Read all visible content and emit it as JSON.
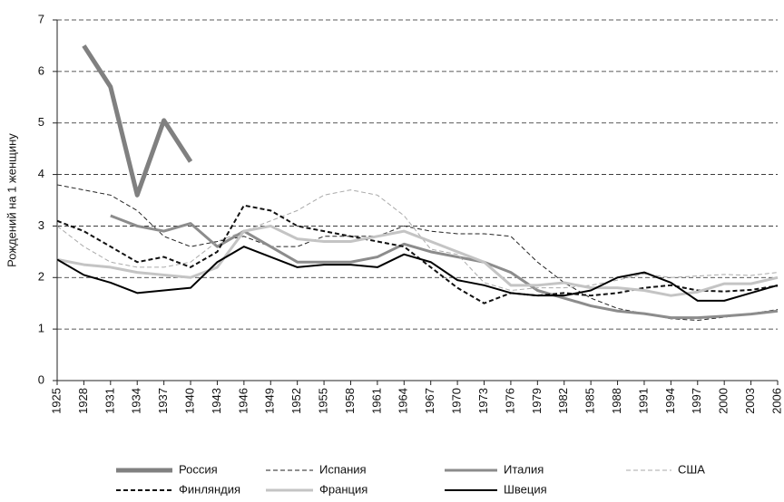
{
  "chart_data": {
    "type": "line",
    "y_label": "Рождений на 1 женщину",
    "x": [
      1925,
      1928,
      1931,
      1934,
      1937,
      1940,
      1943,
      1946,
      1949,
      1952,
      1955,
      1958,
      1961,
      1964,
      1967,
      1970,
      1973,
      1976,
      1979,
      1982,
      1985,
      1988,
      1991,
      1994,
      1997,
      2000,
      2003,
      2006
    ],
    "xlim": [
      1925,
      2006
    ],
    "xticks": [
      1925,
      1928,
      1931,
      1934,
      1937,
      1940,
      1943,
      1946,
      1949,
      1952,
      1955,
      1958,
      1961,
      1964,
      1967,
      1970,
      1973,
      1976,
      1979,
      1982,
      1985,
      1988,
      1991,
      1994,
      1997,
      2000,
      2003,
      2006
    ],
    "ylim": [
      0,
      7
    ],
    "yticks": [
      0,
      1,
      2,
      3,
      4,
      5,
      6,
      7
    ],
    "grid": true,
    "series": [
      {
        "name": "Россия",
        "color": "#808080",
        "line_style": "solid",
        "values": [
          null,
          6.5,
          5.7,
          3.6,
          5.05,
          4.25,
          null,
          null,
          null,
          null,
          null,
          null,
          null,
          null,
          null,
          null,
          null,
          null,
          null,
          null,
          null,
          null,
          null,
          null,
          null,
          null,
          null,
          null
        ]
      },
      {
        "name": "Испания",
        "color": "#222222",
        "line_style": "dashed",
        "values": [
          3.8,
          3.7,
          3.6,
          3.3,
          2.8,
          2.6,
          2.7,
          2.8,
          2.6,
          2.6,
          2.8,
          2.8,
          2.8,
          3.0,
          2.9,
          2.85,
          2.85,
          2.8,
          2.3,
          1.9,
          1.6,
          1.4,
          1.3,
          1.2,
          1.17,
          1.23,
          1.3,
          1.38
        ]
      },
      {
        "name": "Италия",
        "color": "#8c8c8c",
        "line_style": "solid",
        "values": [
          null,
          null,
          3.2,
          3.0,
          2.9,
          3.05,
          2.6,
          2.9,
          2.6,
          2.3,
          2.3,
          2.3,
          2.4,
          2.65,
          2.5,
          2.4,
          2.3,
          2.1,
          1.75,
          1.6,
          1.45,
          1.35,
          1.3,
          1.22,
          1.22,
          1.25,
          1.29,
          1.35
        ]
      },
      {
        "name": "США",
        "color": "#aaaaaa",
        "line_style": "dashed",
        "values": [
          3.0,
          2.6,
          2.3,
          2.2,
          2.2,
          2.3,
          2.7,
          2.9,
          3.1,
          3.3,
          3.6,
          3.7,
          3.6,
          3.2,
          2.55,
          2.45,
          1.9,
          1.75,
          1.8,
          1.8,
          1.85,
          1.95,
          2.07,
          2.0,
          2.03,
          2.06,
          2.04,
          2.1
        ]
      },
      {
        "name": "Финляндия",
        "color": "#111111",
        "line_style": "dashed",
        "values": [
          3.1,
          2.9,
          2.6,
          2.3,
          2.4,
          2.2,
          2.5,
          3.4,
          3.3,
          3.0,
          2.9,
          2.8,
          2.7,
          2.6,
          2.2,
          1.8,
          1.5,
          1.7,
          1.65,
          1.7,
          1.65,
          1.7,
          1.8,
          1.85,
          1.75,
          1.73,
          1.76,
          1.84
        ]
      },
      {
        "name": "Франция",
        "color": "#c4c4c4",
        "line_style": "solid",
        "values": [
          2.35,
          2.25,
          2.2,
          2.1,
          2.05,
          2.0,
          2.2,
          2.9,
          3.0,
          2.75,
          2.7,
          2.7,
          2.8,
          2.9,
          2.7,
          2.5,
          2.3,
          1.85,
          1.85,
          1.9,
          1.8,
          1.8,
          1.75,
          1.65,
          1.72,
          1.88,
          1.88,
          2.0
        ]
      },
      {
        "name": "Швеция",
        "color": "#000000",
        "line_style": "solid",
        "values": [
          2.35,
          2.05,
          1.9,
          1.7,
          1.75,
          1.8,
          2.3,
          2.6,
          2.4,
          2.2,
          2.25,
          2.25,
          2.2,
          2.45,
          2.3,
          1.95,
          1.85,
          1.7,
          1.65,
          1.65,
          1.75,
          2.0,
          2.1,
          1.9,
          1.55,
          1.55,
          1.7,
          1.85
        ]
      }
    ]
  }
}
